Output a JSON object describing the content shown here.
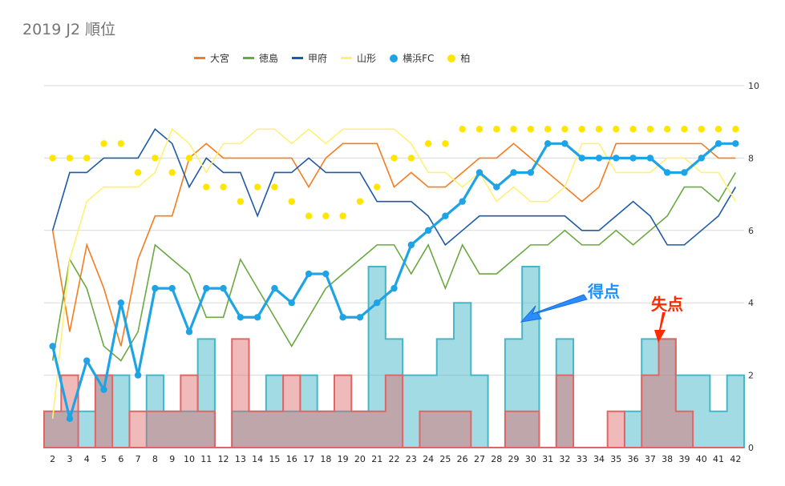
{
  "chart_data": {
    "type": "bar+line",
    "title": "2019 J2 順位",
    "xlabel": "",
    "ylabel": "",
    "ylim": [
      0,
      10
    ],
    "yticks": [
      0,
      2,
      4,
      6,
      8,
      10
    ],
    "categories": [
      2,
      3,
      4,
      5,
      6,
      7,
      8,
      9,
      10,
      11,
      12,
      13,
      14,
      15,
      16,
      17,
      18,
      19,
      20,
      21,
      22,
      23,
      24,
      25,
      26,
      27,
      28,
      29,
      30,
      31,
      32,
      33,
      34,
      35,
      36,
      37,
      38,
      39,
      40,
      41,
      42
    ],
    "bar_series": [
      {
        "name": "得点",
        "color": "#45b7c7",
        "values": [
          1,
          1,
          1,
          2,
          2,
          0,
          2,
          1,
          1,
          3,
          0,
          1,
          1,
          2,
          1,
          2,
          1,
          1,
          1,
          5,
          3,
          2,
          2,
          3,
          4,
          2,
          0,
          3,
          5,
          0,
          3,
          0,
          0,
          0,
          1,
          3,
          3,
          2,
          2,
          1,
          2
        ]
      },
      {
        "name": "失点",
        "color": "#e06666",
        "values": [
          1,
          2,
          0,
          2,
          0,
          1,
          1,
          1,
          2,
          1,
          0,
          3,
          1,
          1,
          2,
          1,
          1,
          2,
          1,
          1,
          2,
          0,
          1,
          1,
          1,
          0,
          0,
          1,
          1,
          0,
          2,
          0,
          0,
          1,
          0,
          2,
          3,
          1,
          0,
          0,
          0
        ]
      }
    ],
    "series": [
      {
        "name": "大宮",
        "color": "#f57c1f",
        "values": [
          6.0,
          3.2,
          5.6,
          4.4,
          2.8,
          5.2,
          6.4,
          6.4,
          8.0,
          8.4,
          8.0,
          8.0,
          8.0,
          8.0,
          8.0,
          7.2,
          8.0,
          8.4,
          8.4,
          8.4,
          7.2,
          7.6,
          7.2,
          7.2,
          7.6,
          8.0,
          8.0,
          8.4,
          8.0,
          7.6,
          7.2,
          6.8,
          7.2,
          8.4,
          8.4,
          8.4,
          8.4,
          8.4,
          8.4,
          8.0,
          8.0
        ]
      },
      {
        "name": "徳島",
        "color": "#6aa843",
        "values": [
          2.4,
          5.2,
          4.4,
          2.8,
          2.4,
          3.2,
          5.6,
          5.2,
          4.8,
          3.6,
          3.6,
          5.2,
          4.4,
          3.6,
          2.8,
          3.6,
          4.4,
          4.8,
          5.2,
          5.6,
          5.6,
          4.8,
          5.6,
          4.4,
          5.6,
          4.8,
          4.8,
          5.2,
          5.6,
          5.6,
          6.0,
          5.6,
          5.6,
          6.0,
          5.6,
          6.0,
          6.4,
          7.2,
          7.2,
          6.8,
          7.6
        ]
      },
      {
        "name": "甲府",
        "color": "#1f5aa6",
        "values": [
          6.0,
          7.6,
          7.6,
          8.0,
          8.0,
          8.0,
          8.8,
          8.4,
          7.2,
          8.0,
          7.6,
          7.6,
          6.4,
          7.6,
          7.6,
          8.0,
          7.6,
          7.6,
          7.6,
          6.8,
          6.8,
          6.8,
          6.4,
          5.6,
          6.0,
          6.4,
          6.4,
          6.4,
          6.4,
          6.4,
          6.4,
          6.0,
          6.0,
          6.4,
          6.8,
          6.4,
          5.6,
          5.6,
          6.0,
          6.4,
          7.2
        ]
      },
      {
        "name": "山形",
        "color": "#fff176",
        "values": [
          0.8,
          5.2,
          6.8,
          7.2,
          7.2,
          7.2,
          7.6,
          8.8,
          8.4,
          7.6,
          8.4,
          8.4,
          8.8,
          8.8,
          8.4,
          8.8,
          8.4,
          8.8,
          8.8,
          8.8,
          8.8,
          8.4,
          7.6,
          7.6,
          7.2,
          7.6,
          6.8,
          7.2,
          6.8,
          6.8,
          7.2,
          8.4,
          8.4,
          7.6,
          7.6,
          7.6,
          8.0,
          8.0,
          7.6,
          7.6,
          6.8
        ]
      },
      {
        "name": "横浜FC",
        "color": "#1ea3e4",
        "marker": "dot",
        "values": [
          2.8,
          0.8,
          2.4,
          1.6,
          4.0,
          2.0,
          4.4,
          4.4,
          3.2,
          4.4,
          4.4,
          3.6,
          3.6,
          4.4,
          4.0,
          4.8,
          4.8,
          3.6,
          3.6,
          4.0,
          4.4,
          5.6,
          6.0,
          6.4,
          6.8,
          7.6,
          7.2,
          7.6,
          7.6,
          8.4,
          8.4,
          8.0,
          8.0,
          8.0,
          8.0,
          8.0,
          7.6,
          7.6,
          8.0,
          8.4,
          8.4
        ]
      },
      {
        "name": "柏",
        "color": "#ffe600",
        "marker": "dot_only",
        "values": [
          8.0,
          8.0,
          8.0,
          8.4,
          8.4,
          7.6,
          8.0,
          7.6,
          8.0,
          7.2,
          7.2,
          6.8,
          7.2,
          7.2,
          6.8,
          6.4,
          6.4,
          6.4,
          6.8,
          7.2,
          8.0,
          8.0,
          8.4,
          8.4,
          8.8,
          8.8,
          8.8,
          8.8,
          8.8,
          8.8,
          8.8,
          8.8,
          8.8,
          8.8,
          8.8,
          8.8,
          8.8,
          8.8,
          8.8,
          8.8,
          8.8
        ]
      }
    ],
    "annotations": [
      {
        "text": "得点",
        "color": "#1e90ff",
        "points_to_category": 30
      },
      {
        "text": "失点",
        "color": "#ff2a00",
        "points_to_category": 38
      }
    ],
    "grid": true,
    "legend": "top-center"
  }
}
